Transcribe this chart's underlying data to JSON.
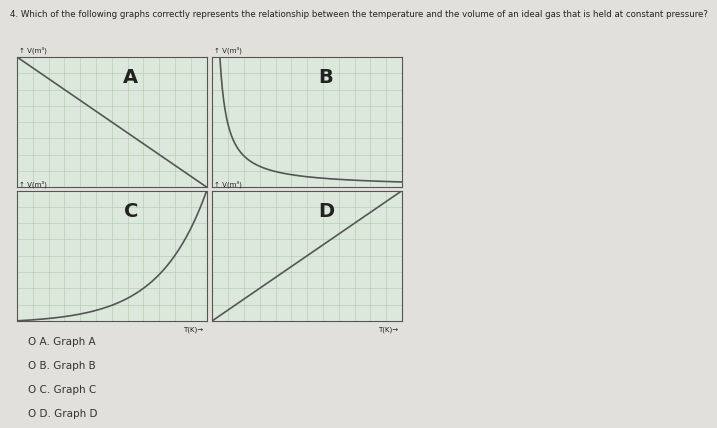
{
  "title": "4. Which of the following graphs correctly represents the relationship between the temperature and the volume of an ideal gas that is held at constant pressure?",
  "title_fontsize": 6.2,
  "graph_labels": [
    "A",
    "B",
    "C",
    "D"
  ],
  "ylabel_text": "V (m³)",
  "xlabel_text": "T (K)",
  "options": [
    "O A. Graph A",
    "O B. Graph B",
    "O C. Graph C",
    "O D. Graph D"
  ],
  "bg_color": "#dde8dd",
  "outer_bg": "#e8e8e4",
  "grid_color": "#adc9ad",
  "axis_color": "#444444",
  "line_color": "#555555",
  "label_fontsize": 11,
  "options_fontsize": 7.5,
  "grid_major_color": "#99bb99",
  "grid_minor_color": "#bbccbb"
}
